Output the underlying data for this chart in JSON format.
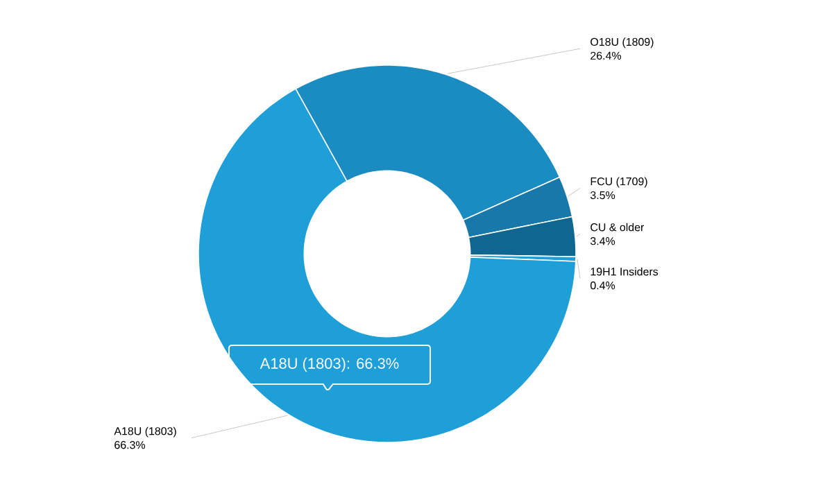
{
  "chart_data": {
    "type": "donut",
    "categories": [
      "O18U (1809)",
      "FCU (1709)",
      "CU & older",
      "19H1 Insiders",
      "A18U (1803)"
    ],
    "values": [
      26.4,
      3.5,
      3.4,
      0.4,
      66.3
    ],
    "value_labels": [
      "26.4%",
      "3.5%",
      "3.4%",
      "0.4%",
      "66.3%"
    ],
    "colors": [
      "#1b8cc2",
      "#1778a9",
      "#0f6791",
      "#1f9fd8",
      "#1f9fd8"
    ],
    "annotations": [
      "A18U (1803): 66.3%"
    ]
  }
}
